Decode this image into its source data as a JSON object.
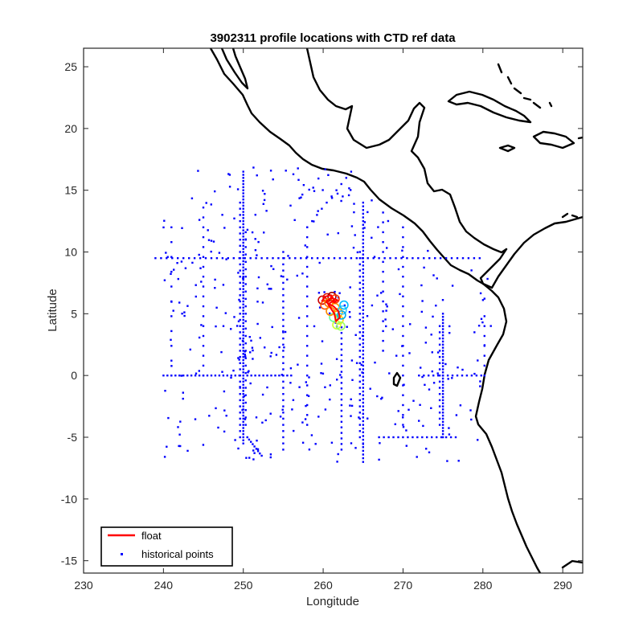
{
  "chart_data": {
    "type": "scatter",
    "title": "3902311 profile locations with CTD ref data",
    "xlabel": "Longitude",
    "ylabel": "Latitude",
    "xlim": [
      230,
      292.5
    ],
    "ylim": [
      -16,
      26.5
    ],
    "xticks": [
      230,
      240,
      250,
      260,
      270,
      280,
      290
    ],
    "yticks": [
      -15,
      -10,
      -5,
      0,
      5,
      10,
      15,
      20,
      25
    ],
    "grid": false,
    "legend_position": "bottom-left",
    "legend": [
      {
        "name": "float",
        "color": "#ff0000",
        "marker": "line"
      },
      {
        "name": "historical points",
        "color": "#0000ff",
        "marker": "dot"
      }
    ],
    "series": [
      {
        "name": "historical points",
        "color": "#0000ff",
        "style": "points",
        "groups": [
          {
            "line": "vertical",
            "x": 250,
            "y_from": -5.5,
            "y_to": 16.5,
            "step": 0.25
          },
          {
            "line": "vertical",
            "x": 249.6,
            "y_from": -5,
            "y_to": 14,
            "step": 0.5
          },
          {
            "line": "vertical",
            "x": 250.3,
            "y_from": -4,
            "y_to": 12,
            "step": 0.6
          },
          {
            "line": "vertical",
            "x": 265,
            "y_from": -7,
            "y_to": 14,
            "step": 0.3
          },
          {
            "line": "vertical",
            "x": 264.6,
            "y_from": -5,
            "y_to": 10,
            "step": 0.5
          },
          {
            "line": "vertical",
            "x": 275,
            "y_from": -5,
            "y_to": 5,
            "step": 0.25
          },
          {
            "line": "vertical",
            "x": 274.6,
            "y_from": -4,
            "y_to": 4,
            "step": 0.5
          },
          {
            "line": "vertical",
            "x": 255,
            "y_from": -6,
            "y_to": 10,
            "step": 0.5
          },
          {
            "line": "vertical",
            "x": 262.3,
            "y_from": -6,
            "y_to": 4,
            "step": 0.45
          },
          {
            "line": "vertical",
            "x": 245,
            "y_from": 0,
            "y_to": 14,
            "step": 0.8
          },
          {
            "line": "vertical",
            "x": 258,
            "y_from": -4,
            "y_to": 12,
            "step": 0.8
          },
          {
            "line": "vertical",
            "x": 270,
            "y_from": -4,
            "y_to": 12,
            "step": 0.8
          },
          {
            "line": "vertical",
            "x": 241,
            "y_from": 0,
            "y_to": 12.6,
            "step": 1.2
          },
          {
            "line": "vertical",
            "x": 267.5,
            "y_from": 2,
            "y_to": 13.5,
            "step": 0.8
          },
          {
            "line": "vertical",
            "x": 280.2,
            "y_from": 0,
            "y_to": 5,
            "step": 0.8
          },
          {
            "line": "horizontal",
            "y": 9.5,
            "x_from": 239,
            "x_to": 280,
            "step": 0.7
          },
          {
            "line": "horizontal",
            "y": 0,
            "x_from": 240,
            "x_to": 256,
            "step": 0.5
          },
          {
            "line": "horizontal",
            "y": 0,
            "x_from": 272,
            "x_to": 280,
            "step": 0.6
          },
          {
            "line": "horizontal",
            "y": -5,
            "x_from": 267,
            "x_to": 277,
            "step": 0.6
          },
          {
            "line": "diagonal",
            "x_from": 250.5,
            "y_from": -5,
            "x_to": 252.3,
            "y_to": -6.5,
            "step": 0.3
          },
          {
            "line": "diagonal",
            "x_from": 258,
            "y_from": 12,
            "x_to": 263.5,
            "y_to": 16.5,
            "step": 0.8
          },
          {
            "line": "scatter_region",
            "x_from": 240,
            "x_to": 283,
            "y_from": -7,
            "y_to": 17,
            "count": 380
          }
        ]
      },
      {
        "name": "float",
        "color": "#ff0000",
        "style": "line",
        "points": [
          [
            259.8,
            6.0
          ],
          [
            260.3,
            6.4
          ],
          [
            261.0,
            6.5
          ],
          [
            261.4,
            6.1
          ],
          [
            260.7,
            5.8
          ],
          [
            261.3,
            5.6
          ],
          [
            261.9,
            5.2
          ],
          [
            262.1,
            4.7
          ],
          [
            261.6,
            4.4
          ],
          [
            261.4,
            5.0
          ],
          [
            260.9,
            5.5
          ],
          [
            260.4,
            6.0
          ],
          [
            261.0,
            6.3
          ],
          [
            261.8,
            6.1
          ],
          [
            261.3,
            5.9
          ]
        ],
        "profile_markers": [
          {
            "x": 259.9,
            "y": 6.1,
            "color": "#cc0000"
          },
          {
            "x": 260.5,
            "y": 6.3,
            "color": "#dd1100"
          },
          {
            "x": 261.1,
            "y": 6.4,
            "color": "#990000"
          },
          {
            "x": 260.2,
            "y": 5.7,
            "color": "#ff5500"
          },
          {
            "x": 260.7,
            "y": 5.9,
            "color": "#ff7700"
          },
          {
            "x": 261.5,
            "y": 5.5,
            "color": "#ff9900"
          },
          {
            "x": 261.9,
            "y": 5.1,
            "color": "#ffaa00"
          },
          {
            "x": 262.0,
            "y": 4.5,
            "color": "#ffdd00"
          },
          {
            "x": 261.7,
            "y": 4.1,
            "color": "#ccff33"
          },
          {
            "x": 262.2,
            "y": 4.0,
            "color": "#99ff66"
          },
          {
            "x": 261.3,
            "y": 4.7,
            "color": "#66ff99"
          },
          {
            "x": 262.4,
            "y": 5.3,
            "color": "#33ccff"
          },
          {
            "x": 262.6,
            "y": 5.7,
            "color": "#00bbff"
          },
          {
            "x": 262.3,
            "y": 4.9,
            "color": "#00aaee"
          },
          {
            "x": 261.5,
            "y": 6.2,
            "color": "#ff3300"
          },
          {
            "x": 260.9,
            "y": 5.2,
            "color": "#ff8800"
          }
        ]
      }
    ]
  }
}
